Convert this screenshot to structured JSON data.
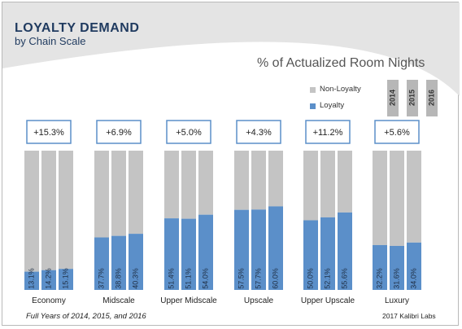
{
  "header": {
    "title": "LOYALTY DEMAND",
    "subtitle": "by Chain Scale"
  },
  "footnote": "Full Years of 2014, 2015, and 2016",
  "source": "2017 Kalibri Labs",
  "colors": {
    "loyalty": "#5b8fc9",
    "non_loyalty": "#c4c4c4",
    "title": "#1f3a5f",
    "callout_border": "#5b8fc9",
    "header_band": "#e4e4e4"
  },
  "chart_data": {
    "type": "bar",
    "stacked": true,
    "title": "% of Actualized Room Nights",
    "categories": [
      "Economy",
      "Midscale",
      "Upper Midscale",
      "Upscale",
      "Upper Upscale",
      "Luxury"
    ],
    "years": [
      "2014",
      "2015",
      "2016"
    ],
    "series": [
      {
        "name": "Loyalty",
        "values": [
          [
            13.1,
            14.2,
            15.1
          ],
          [
            37.7,
            38.8,
            40.3
          ],
          [
            51.4,
            51.1,
            54.0
          ],
          [
            57.5,
            57.7,
            60.0
          ],
          [
            50.0,
            52.1,
            55.6
          ],
          [
            32.2,
            31.6,
            34.0
          ]
        ],
        "labels": [
          [
            "13.1%",
            "14.2%",
            "15.1%"
          ],
          [
            "37.7%",
            "38.8%",
            "40.3%"
          ],
          [
            "51.4%",
            "51.1%",
            "54.0%"
          ],
          [
            "57.5%",
            "57.7%",
            "60.0%"
          ],
          [
            "50.0%",
            "52.1%",
            "55.6%"
          ],
          [
            "32.2%",
            "31.6%",
            "34.0%"
          ]
        ]
      },
      {
        "name": "Non-Loyalty",
        "values": [
          [
            86.9,
            85.8,
            84.9
          ],
          [
            62.3,
            61.2,
            59.7
          ],
          [
            48.6,
            48.9,
            46.0
          ],
          [
            42.5,
            42.3,
            40.0
          ],
          [
            50.0,
            47.9,
            44.4
          ],
          [
            67.8,
            68.4,
            66.0
          ]
        ]
      }
    ],
    "change_labels": [
      "+15.3%",
      "+6.9%",
      "+5.0%",
      "+4.3%",
      "+11.2%",
      "+5.6%"
    ],
    "ylim": [
      0,
      100
    ],
    "legend_position": "top-right",
    "grid": false
  }
}
